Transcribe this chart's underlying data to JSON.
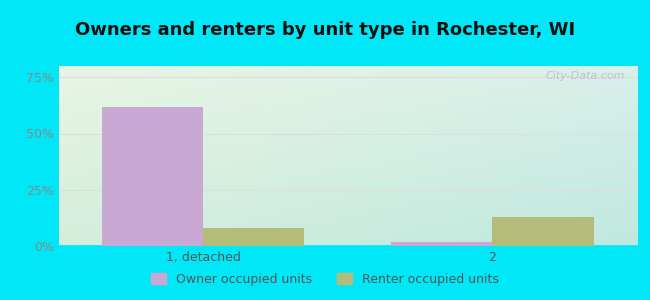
{
  "title": "Owners and renters by unit type in Rochester, WI",
  "categories": [
    "1, detached",
    "2"
  ],
  "owner_values": [
    62,
    2
  ],
  "renter_values": [
    8,
    13
  ],
  "owner_color": "#c9a8d4",
  "renter_color": "#b5bc7a",
  "yticks": [
    0,
    25,
    50,
    75
  ],
  "ytick_labels": [
    "0%",
    "25%",
    "50%",
    "75%"
  ],
  "ylim": [
    0,
    80
  ],
  "bar_width": 0.35,
  "outer_background": "#00e8f8",
  "title_fontsize": 13,
  "tick_fontsize": 9,
  "legend_fontsize": 9,
  "watermark": "City-Data.com",
  "label_color": "#555555",
  "ytick_color": "#888888",
  "grid_color": "#dddddd",
  "bg_top_left": "#e8f5e4",
  "bg_top_right": "#d8f0ea",
  "bg_bot_left": "#d4eedc",
  "bg_bot_right": "#c0e8e0"
}
